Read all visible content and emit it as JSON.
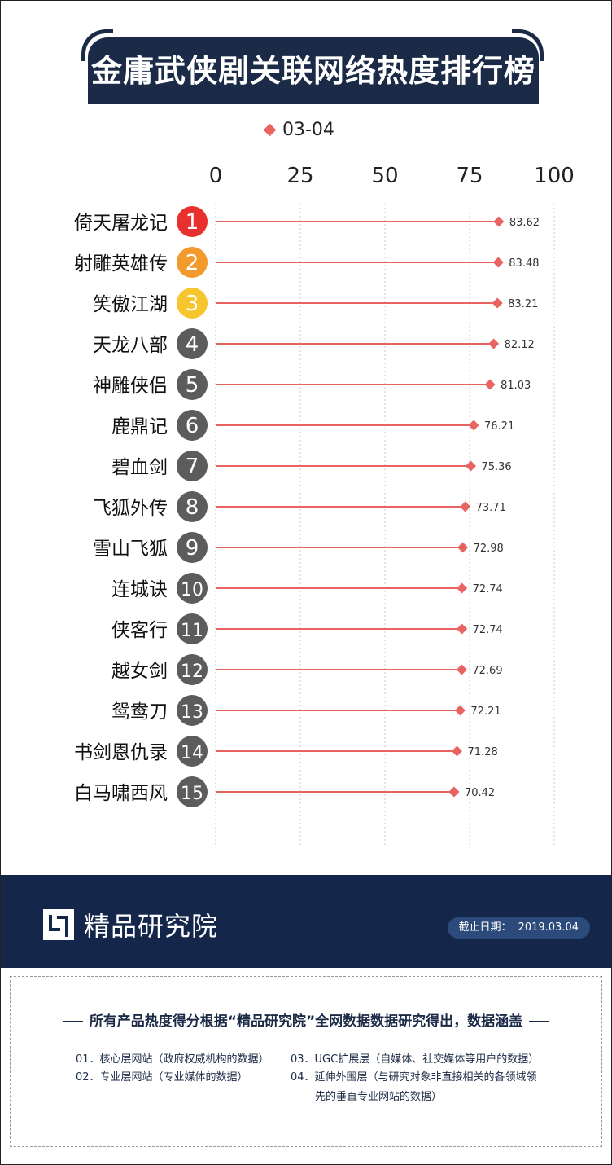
{
  "title": "金庸武侠剧关联网络热度排行榜",
  "legend_label": "03-04",
  "colors": {
    "marker": "#e96361",
    "line": "#e96361",
    "navy": "#1b2a46",
    "rank1": "#e8312f",
    "rank2": "#f39a2c",
    "rank3": "#f7c52e",
    "rank_other": "#5c5c5c"
  },
  "chart_data": {
    "type": "lollipop",
    "series": [
      {
        "name": "03-04"
      }
    ],
    "xlim": [
      0,
      100
    ],
    "x_ticks": [
      "0",
      "25",
      "50",
      "75",
      "100"
    ],
    "grid": true,
    "legend": "top",
    "categories": [
      "倚天屠龙记",
      "射雕英雄传",
      "笑傲江湖",
      "天龙八部",
      "神雕侠侣",
      "鹿鼎记",
      "碧血剑",
      "飞狐外传",
      "雪山飞狐",
      "连城诀",
      "侠客行",
      "越女剑",
      "鸳鸯刀",
      "书剑恩仇录",
      "白马啸西风"
    ],
    "ranks": [
      "1",
      "2",
      "3",
      "4",
      "5",
      "6",
      "7",
      "8",
      "9",
      "10",
      "11",
      "12",
      "13",
      "14",
      "15"
    ],
    "values": [
      83.62,
      83.48,
      83.21,
      82.12,
      81.03,
      76.21,
      75.36,
      73.71,
      72.98,
      72.74,
      72.74,
      72.69,
      72.21,
      71.28,
      70.42
    ]
  },
  "footer": {
    "logo_text": "精品研究院",
    "date_label": "截止日期：",
    "date_value": "2019.03.04"
  },
  "notes": {
    "heading": "所有产品热度得分根据“精品研究院”全网数据数据研究得出，数据涵盖",
    "items": [
      "01．核心层网站（政府权威机构的数据）",
      "02．专业层网站（专业媒体的数据）",
      "03．UGC扩展层（自媒体、社交媒体等用户的数据）",
      "04．延伸外围层（与研究对象非直接相关的各领域领",
      "先的垂直专业网站的数据）"
    ]
  }
}
